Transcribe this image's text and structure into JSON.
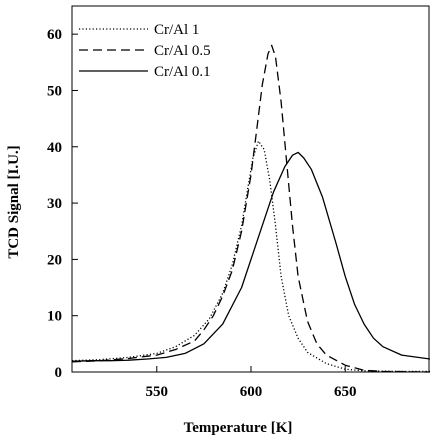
{
  "chart_data": {
    "type": "line",
    "title": "",
    "xlabel": "Temperature [K]",
    "ylabel": "TCD Signal [I.U.]",
    "xlim": [
      505,
      695
    ],
    "ylim": [
      0,
      65
    ],
    "xticks": [
      550,
      600,
      650
    ],
    "yticks": [
      0,
      10,
      20,
      30,
      40,
      50,
      60
    ],
    "grid": false,
    "legend_position": "top-left",
    "series": [
      {
        "name": "Cr/Al 1",
        "style": "dotted",
        "color": "#000000",
        "x": [
          505,
          520,
          535,
          550,
          560,
          570,
          578,
          585,
          590,
          595,
          598,
          601,
          604,
          607,
          610,
          613,
          616,
          620,
          625,
          630,
          640,
          650,
          660,
          680,
          695
        ],
        "y": [
          2.0,
          2.2,
          2.6,
          3.3,
          4.5,
          6.5,
          9.5,
          14.0,
          19.0,
          26.0,
          32.0,
          38.0,
          41.0,
          39.5,
          34.0,
          26.0,
          17.0,
          10.0,
          6.0,
          3.5,
          1.5,
          0.5,
          0.2,
          0.1,
          0.1
        ]
      },
      {
        "name": "Cr/Al 0.5",
        "style": "dashed",
        "color": "#000000",
        "x": [
          505,
          520,
          535,
          550,
          560,
          570,
          575,
          580,
          585,
          590,
          595,
          600,
          603,
          606,
          609,
          611,
          613,
          616,
          619,
          622,
          625,
          630,
          635,
          640,
          650,
          660,
          670,
          695
        ],
        "y": [
          1.8,
          2.0,
          2.4,
          3.0,
          4.0,
          5.5,
          7.5,
          10.0,
          13.5,
          18.0,
          25.0,
          35.0,
          43.0,
          51.0,
          56.5,
          58.0,
          56.0,
          48.0,
          37.0,
          26.0,
          17.0,
          9.0,
          5.0,
          3.0,
          1.2,
          0.3,
          0.1,
          0.0
        ]
      },
      {
        "name": "Cr/Al 0.1",
        "style": "solid",
        "color": "#000000",
        "x": [
          505,
          515,
          525,
          535,
          545,
          555,
          565,
          575,
          585,
          595,
          605,
          612,
          618,
          622,
          625,
          628,
          632,
          638,
          645,
          650,
          655,
          660,
          665,
          670,
          680,
          695
        ],
        "y": [
          1.9,
          2.0,
          2.0,
          2.1,
          2.3,
          2.6,
          3.3,
          5.0,
          8.5,
          15.0,
          25.0,
          32.0,
          36.5,
          38.5,
          39.0,
          38.0,
          36.0,
          31.0,
          23.0,
          17.0,
          12.0,
          8.5,
          6.0,
          4.5,
          3.0,
          2.3
        ]
      }
    ]
  }
}
